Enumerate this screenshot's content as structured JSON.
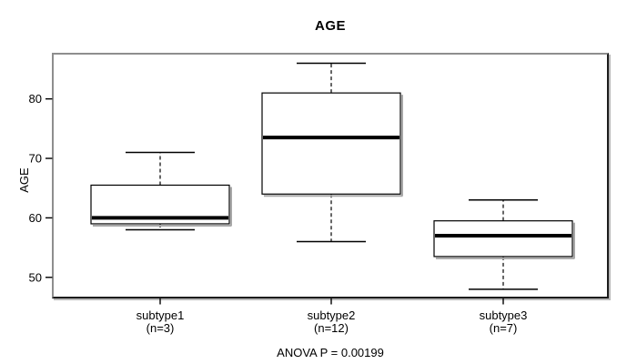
{
  "chart_data": {
    "type": "boxplot",
    "title": "AGE",
    "ylabel": "AGE",
    "xlabel": "",
    "ylim": [
      46.6,
      87.6
    ],
    "yticks": [
      50,
      60,
      70,
      80
    ],
    "grid": false,
    "legend": null,
    "annotation": "ANOVA P = 0.00199",
    "groups": [
      {
        "label": "subtype1",
        "sublabel": "(n=3)",
        "n": 3,
        "whisker_low": 58,
        "q1": 59,
        "median": 60,
        "q3": 65.5,
        "whisker_high": 71
      },
      {
        "label": "subtype2",
        "sublabel": "(n=12)",
        "n": 12,
        "whisker_low": 56,
        "q1": 64,
        "median": 73.5,
        "q3": 81,
        "whisker_high": 86
      },
      {
        "label": "subtype3",
        "sublabel": "(n=7)",
        "n": 7,
        "whisker_low": 48,
        "q1": 53.5,
        "median": 57,
        "q3": 59.5,
        "whisker_high": 63
      }
    ]
  },
  "colors": {
    "line": "#000000",
    "box_fill": "#ffffff",
    "shadow": "#a8a8a8",
    "frame_light": "#8e8e8e",
    "background": "#ffffff"
  }
}
